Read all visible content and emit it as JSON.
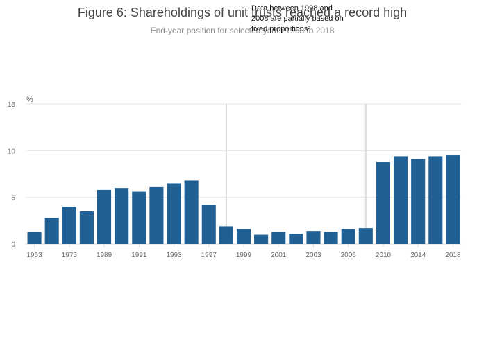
{
  "chart_data": {
    "type": "bar",
    "title": "Figure 6: Shareholdings of unit trusts reached a record high",
    "subtitle": "End-year position for selected years 1963 to 2018",
    "ylabel": "%",
    "xlabel": "",
    "ylim": [
      0,
      15
    ],
    "yticks": [
      0,
      5,
      10,
      15
    ],
    "grid": true,
    "color": "#206095",
    "categories": [
      "1963",
      "1969",
      "1975",
      "1981",
      "1989",
      "1990",
      "1991",
      "1992",
      "1993",
      "1994",
      "1997",
      "1998",
      "1999",
      "2000",
      "2001",
      "2002",
      "2003",
      "2004",
      "2006",
      "2008",
      "2010",
      "2012",
      "2014",
      "2016",
      "2018"
    ],
    "tick_labels": [
      "1963",
      "1975",
      "1989",
      "1991",
      "1993",
      "1997",
      "1999",
      "2001",
      "2003",
      "2006",
      "2010",
      "2014",
      "2018"
    ],
    "values": [
      1.3,
      2.8,
      4.0,
      3.5,
      5.8,
      6.0,
      5.6,
      6.1,
      6.5,
      6.8,
      4.2,
      1.9,
      1.6,
      1.0,
      1.3,
      1.1,
      1.4,
      1.3,
      1.6,
      1.7,
      8.8,
      9.4,
      9.1,
      9.4,
      9.5
    ],
    "annotation": {
      "lines": [
        "Data between 1998 and",
        "2008 are partially based on",
        "fixed proportions²"
      ],
      "markers_at": [
        "1998",
        "2008"
      ]
    }
  }
}
